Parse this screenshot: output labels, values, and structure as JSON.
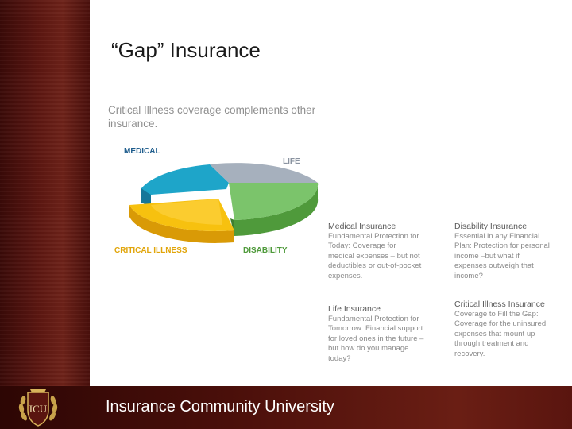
{
  "slide": {
    "title": "“Gap” Insurance",
    "intro": "Critical Illness coverage complements other insurance.",
    "footer": "Insurance Community University",
    "logo_text": "ICU"
  },
  "pie": {
    "labels": {
      "medical": "MEDICAL",
      "life": "LIFE",
      "critical": "CRITICAL ILLNESS",
      "disability": "DISABILITY"
    },
    "colors": {
      "medical": "#1ea5c9",
      "life": "#a6b0bd",
      "disability": "#7bc46b",
      "critical": "#f7c10f",
      "medical_label": "#1d5c8c",
      "life_label": "#8a93a0",
      "disability_label": "#4f9a3b",
      "critical_label": "#e1a50a"
    }
  },
  "descriptions": {
    "medical": {
      "heading": "Medical Insurance",
      "lines": [
        "Fundamental Protection for",
        "Today: Coverage for",
        "medical expenses – but not",
        "deductibles or out-of-pocket",
        "expenses."
      ]
    },
    "disability": {
      "heading": "Disability Insurance",
      "lines": [
        "Essential in any Financial",
        "Plan: Protection for personal",
        "income –but what if",
        "expenses outweigh that",
        "income?"
      ]
    },
    "life": {
      "heading": "Life Insurance",
      "lines": [
        "Fundamental Protection for",
        "Tomorrow: Financial support",
        "for loved ones in the future –",
        "but how do you manage",
        "today?"
      ]
    },
    "critical": {
      "heading": "Critical Illness Insurance",
      "lines": [
        "Coverage to Fill the Gap:",
        "Coverage for the uninsured",
        "expenses that mount up",
        "through treatment and",
        "recovery."
      ]
    }
  }
}
